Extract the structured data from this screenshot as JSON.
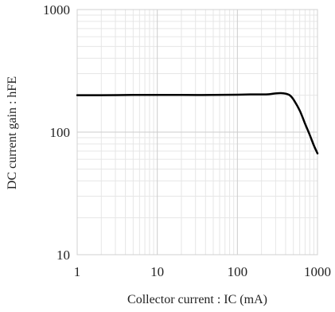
{
  "chart_data": {
    "type": "line",
    "xlabel": "Collector current : IC (mA)",
    "ylabel": "DC current gain : hFE",
    "x_scale": "log",
    "y_scale": "log",
    "xlim": [
      1,
      1000
    ],
    "ylim": [
      10,
      1000
    ],
    "x_ticks": [
      1,
      10,
      100,
      1000
    ],
    "x_tick_labels": [
      "1",
      "10",
      "100",
      "1000"
    ],
    "y_ticks": [
      10,
      100,
      1000
    ],
    "y_tick_labels": [
      "10",
      "100",
      "1000"
    ],
    "grid": true,
    "legend": "none",
    "line_color": "#000000",
    "grid_color": "#d9d9d9",
    "series": [
      {
        "x": [
          1,
          2,
          5,
          10,
          20,
          50,
          100,
          150,
          200,
          250,
          300,
          350,
          400,
          450,
          500,
          600,
          700,
          800,
          900,
          1000
        ],
        "y": [
          200,
          200,
          201,
          201,
          201,
          201,
          202,
          203,
          203,
          204,
          207,
          208,
          206,
          200,
          185,
          150,
          117,
          95,
          78,
          67
        ]
      }
    ]
  }
}
